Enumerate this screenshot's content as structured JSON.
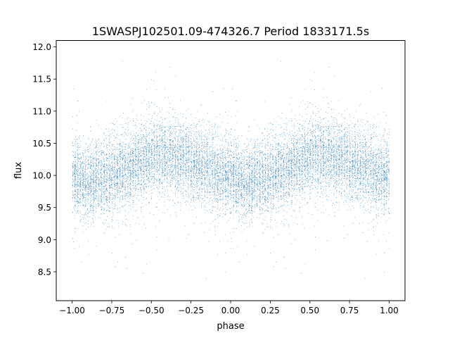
{
  "chart_data": {
    "type": "scatter",
    "title": "1SWASPJ102501.09-474326.7 Period 1833171.5s",
    "xlabel": "phase",
    "ylabel": "flux",
    "xlim": [
      -1.1,
      1.1
    ],
    "ylim": [
      8.05,
      12.1
    ],
    "x_ticks": [
      -1.0,
      -0.75,
      -0.5,
      -0.25,
      0.0,
      0.25,
      0.5,
      0.75,
      1.0
    ],
    "x_tick_labels": [
      "−1.00",
      "−0.75",
      "−0.50",
      "−0.25",
      "0.00",
      "0.25",
      "0.50",
      "0.75",
      "1.00"
    ],
    "y_ticks": [
      8.5,
      9.0,
      9.5,
      10.0,
      10.5,
      11.0,
      11.5,
      12.0
    ],
    "y_tick_labels": [
      "8.5",
      "9.0",
      "9.5",
      "10.0",
      "10.5",
      "11.0",
      "11.5",
      "12.0"
    ],
    "grid": false,
    "marker_color": "#1f77b4",
    "phase_range": [
      -1.0,
      1.0
    ],
    "phase_folded": true,
    "approx_point_count": 14000,
    "flux_median": 10.05,
    "flux_binned_profile": [
      {
        "phase": 0.0,
        "flux": 9.95
      },
      {
        "phase": 0.1,
        "flux": 9.9
      },
      {
        "phase": 0.2,
        "flux": 9.95
      },
      {
        "phase": 0.3,
        "flux": 10.05
      },
      {
        "phase": 0.4,
        "flux": 10.2
      },
      {
        "phase": 0.5,
        "flux": 10.3
      },
      {
        "phase": 0.6,
        "flux": 10.3
      },
      {
        "phase": 0.7,
        "flux": 10.25
      },
      {
        "phase": 0.8,
        "flux": 10.15
      },
      {
        "phase": 0.9,
        "flux": 10.05
      },
      {
        "phase": 1.0,
        "flux": 9.95
      }
    ],
    "flux_scatter_sigma": 0.3
  }
}
